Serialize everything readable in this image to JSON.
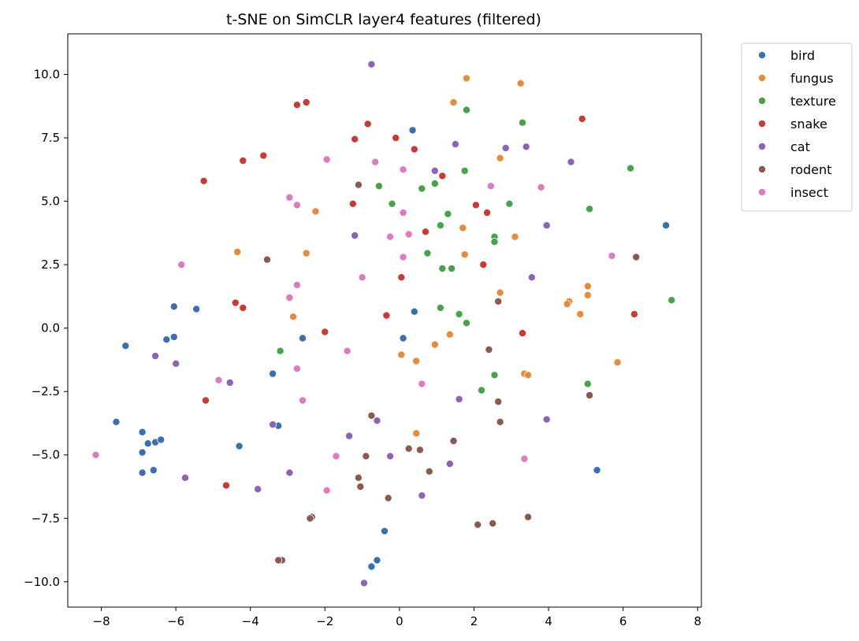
{
  "chart_data": {
    "type": "scatter",
    "title": "t-SNE on SimCLR layer4 features (filtered)",
    "xlabel": "",
    "ylabel": "",
    "xlim": [
      -8.9,
      8.1
    ],
    "ylim": [
      -11.0,
      11.6
    ],
    "xticks": [
      -8,
      -6,
      -4,
      -2,
      0,
      2,
      4,
      6,
      8
    ],
    "yticks": [
      -10.0,
      -7.5,
      -5.0,
      -2.5,
      0.0,
      2.5,
      5.0,
      7.5,
      10.0
    ],
    "xtick_labels": [
      "−8",
      "−6",
      "−4",
      "−2",
      "0",
      "2",
      "4",
      "6",
      "8"
    ],
    "ytick_labels": [
      "−10.0",
      "−7.5",
      "−5.0",
      "−2.5",
      "0.0",
      "2.5",
      "5.0",
      "7.5",
      "10.0"
    ],
    "grid": false,
    "legend_position": "outside-upper-right",
    "series": [
      {
        "name": "bird",
        "color": "#3a6fb0",
        "points": [
          [
            7.15,
            4.05
          ],
          [
            0.35,
            7.8
          ],
          [
            -6.05,
            0.85
          ],
          [
            -5.45,
            0.75
          ],
          [
            -6.25,
            -0.45
          ],
          [
            -6.05,
            -0.35
          ],
          [
            -7.35,
            -0.7
          ],
          [
            0.1,
            -0.4
          ],
          [
            0.4,
            0.65
          ],
          [
            -2.6,
            -0.4
          ],
          [
            -3.4,
            -1.8
          ],
          [
            -7.6,
            -3.7
          ],
          [
            -6.9,
            -4.1
          ],
          [
            -6.75,
            -4.55
          ],
          [
            -6.55,
            -4.5
          ],
          [
            -6.4,
            -4.4
          ],
          [
            -6.9,
            -4.9
          ],
          [
            -6.9,
            -5.7
          ],
          [
            -6.6,
            -5.6
          ],
          [
            -4.3,
            -4.65
          ],
          [
            -3.25,
            -3.85
          ],
          [
            5.3,
            -5.6
          ],
          [
            -0.4,
            -8.0
          ],
          [
            -0.6,
            -9.15
          ],
          [
            -0.75,
            -9.4
          ]
        ]
      },
      {
        "name": "fungus",
        "color": "#e88b39",
        "points": [
          [
            1.8,
            9.85
          ],
          [
            3.25,
            9.65
          ],
          [
            1.45,
            8.9
          ],
          [
            2.7,
            6.7
          ],
          [
            -2.25,
            4.6
          ],
          [
            1.7,
            3.95
          ],
          [
            3.1,
            3.6
          ],
          [
            -4.35,
            3.0
          ],
          [
            -2.5,
            2.95
          ],
          [
            1.75,
            2.9
          ],
          [
            5.05,
            1.65
          ],
          [
            2.7,
            1.4
          ],
          [
            5.05,
            1.3
          ],
          [
            4.55,
            1.05
          ],
          [
            4.5,
            0.95
          ],
          [
            4.85,
            0.55
          ],
          [
            -2.85,
            0.45
          ],
          [
            1.35,
            -0.25
          ],
          [
            0.95,
            -0.65
          ],
          [
            0.05,
            -1.05
          ],
          [
            0.45,
            -1.3
          ],
          [
            5.85,
            -1.35
          ],
          [
            3.35,
            -1.8
          ],
          [
            3.45,
            -1.85
          ],
          [
            0.45,
            -4.15
          ]
        ]
      },
      {
        "name": "texture",
        "color": "#46a346",
        "points": [
          [
            1.8,
            8.6
          ],
          [
            3.3,
            8.1
          ],
          [
            6.2,
            6.3
          ],
          [
            1.75,
            6.2
          ],
          [
            -0.55,
            5.6
          ],
          [
            0.6,
            5.5
          ],
          [
            0.95,
            5.7
          ],
          [
            -0.2,
            4.9
          ],
          [
            2.95,
            4.9
          ],
          [
            5.1,
            4.7
          ],
          [
            1.3,
            4.5
          ],
          [
            1.1,
            4.05
          ],
          [
            2.55,
            3.6
          ],
          [
            2.55,
            3.4
          ],
          [
            0.75,
            2.95
          ],
          [
            1.15,
            2.35
          ],
          [
            1.4,
            2.35
          ],
          [
            7.3,
            1.1
          ],
          [
            1.1,
            0.8
          ],
          [
            1.6,
            0.55
          ],
          [
            1.8,
            0.2
          ],
          [
            -3.2,
            -0.9
          ],
          [
            2.55,
            -1.85
          ],
          [
            2.2,
            -2.45
          ],
          [
            5.05,
            -2.2
          ]
        ]
      },
      {
        "name": "snake",
        "color": "#c93a33",
        "points": [
          [
            -2.5,
            8.9
          ],
          [
            -2.75,
            8.8
          ],
          [
            4.9,
            8.25
          ],
          [
            -0.85,
            8.05
          ],
          [
            -1.2,
            7.45
          ],
          [
            -0.1,
            7.5
          ],
          [
            0.4,
            7.05
          ],
          [
            -3.65,
            6.8
          ],
          [
            -4.2,
            6.6
          ],
          [
            -5.25,
            5.8
          ],
          [
            1.15,
            6.0
          ],
          [
            -1.25,
            4.9
          ],
          [
            2.05,
            4.85
          ],
          [
            2.35,
            4.55
          ],
          [
            0.7,
            3.8
          ],
          [
            0.05,
            2.0
          ],
          [
            2.25,
            2.5
          ],
          [
            -4.4,
            1.0
          ],
          [
            -4.2,
            0.8
          ],
          [
            6.3,
            0.55
          ],
          [
            -0.35,
            0.5
          ],
          [
            -2.0,
            -0.15
          ],
          [
            3.3,
            -0.2
          ],
          [
            -5.2,
            -2.85
          ],
          [
            -4.65,
            -6.2
          ]
        ]
      },
      {
        "name": "cat",
        "color": "#8e62b8",
        "points": [
          [
            -0.75,
            10.4
          ],
          [
            1.5,
            7.25
          ],
          [
            2.85,
            7.1
          ],
          [
            3.4,
            7.15
          ],
          [
            0.95,
            6.2
          ],
          [
            4.6,
            6.55
          ],
          [
            -1.2,
            3.65
          ],
          [
            3.95,
            4.05
          ],
          [
            3.55,
            2.0
          ],
          [
            -6.55,
            -1.1
          ],
          [
            -6.0,
            -1.4
          ],
          [
            -4.55,
            -2.15
          ],
          [
            1.6,
            -2.8
          ],
          [
            3.95,
            -3.6
          ],
          [
            -3.4,
            -3.8
          ],
          [
            -1.35,
            -4.25
          ],
          [
            -0.6,
            -3.65
          ],
          [
            -0.25,
            -5.05
          ],
          [
            1.35,
            -5.35
          ],
          [
            -5.75,
            -5.9
          ],
          [
            -2.95,
            -5.7
          ],
          [
            -3.8,
            -6.35
          ],
          [
            0.6,
            -6.6
          ],
          [
            -0.95,
            -10.05
          ]
        ]
      },
      {
        "name": "rodent",
        "color": "#8a5a4e",
        "points": [
          [
            -1.1,
            5.65
          ],
          [
            -3.55,
            2.7
          ],
          [
            6.35,
            2.8
          ],
          [
            2.65,
            1.05
          ],
          [
            2.4,
            -0.85
          ],
          [
            5.1,
            -2.65
          ],
          [
            2.65,
            -2.9
          ],
          [
            2.7,
            -3.7
          ],
          [
            -0.75,
            -3.45
          ],
          [
            1.45,
            -4.45
          ],
          [
            0.25,
            -4.75
          ],
          [
            0.55,
            -4.8
          ],
          [
            -0.9,
            -5.05
          ],
          [
            -1.1,
            -5.9
          ],
          [
            -1.05,
            -6.25
          ],
          [
            0.8,
            -5.65
          ],
          [
            -0.3,
            -6.7
          ],
          [
            -2.35,
            -7.45
          ],
          [
            -2.4,
            -7.5
          ],
          [
            2.1,
            -7.75
          ],
          [
            2.5,
            -7.7
          ],
          [
            3.45,
            -7.45
          ],
          [
            -3.15,
            -9.15
          ],
          [
            -3.25,
            -9.15
          ]
        ]
      },
      {
        "name": "insect",
        "color": "#dd7bc0",
        "points": [
          [
            -1.95,
            6.65
          ],
          [
            -0.65,
            6.55
          ],
          [
            0.1,
            6.25
          ],
          [
            2.45,
            5.6
          ],
          [
            3.8,
            5.55
          ],
          [
            -2.95,
            5.15
          ],
          [
            -2.75,
            4.85
          ],
          [
            0.1,
            4.55
          ],
          [
            -0.25,
            3.6
          ],
          [
            0.25,
            3.7
          ],
          [
            -5.85,
            2.5
          ],
          [
            0.1,
            2.8
          ],
          [
            5.7,
            2.85
          ],
          [
            -1.0,
            2.0
          ],
          [
            -2.75,
            1.7
          ],
          [
            -2.95,
            1.2
          ],
          [
            -1.4,
            -0.9
          ],
          [
            -2.75,
            -1.6
          ],
          [
            0.6,
            -2.2
          ],
          [
            -4.85,
            -2.05
          ],
          [
            -2.6,
            -2.85
          ],
          [
            -8.15,
            -5.0
          ],
          [
            -1.7,
            -5.05
          ],
          [
            3.35,
            -5.15
          ],
          [
            -1.95,
            -6.4
          ]
        ]
      }
    ]
  }
}
